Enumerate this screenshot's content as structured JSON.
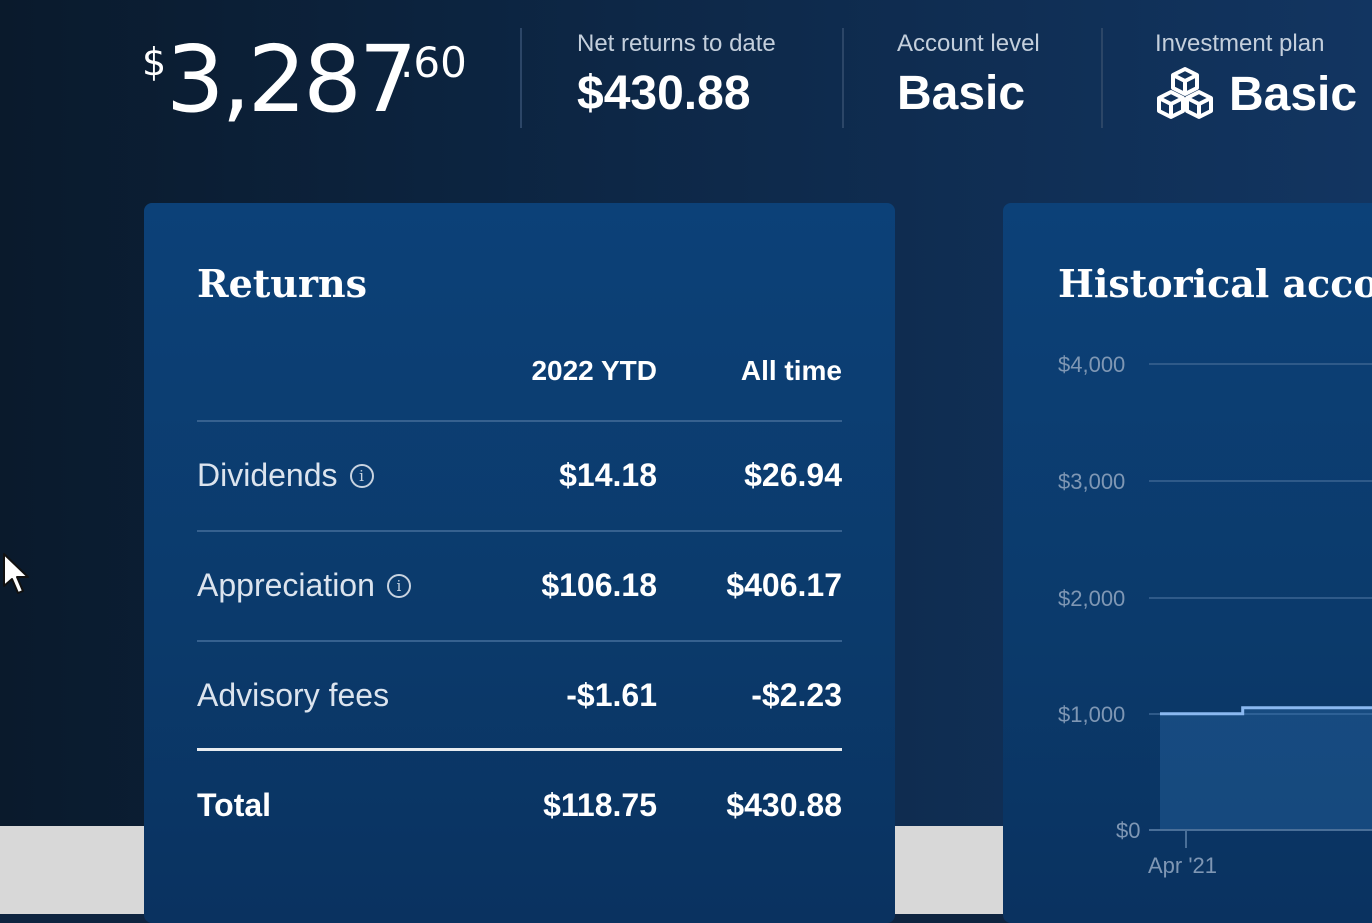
{
  "summary": {
    "balance": {
      "currency": "$",
      "whole": "3,287",
      "cents": ".60"
    },
    "net_returns": {
      "label": "Net returns to date",
      "value": "$430.88"
    },
    "account_level": {
      "label": "Account level",
      "value": "Basic"
    },
    "investment_plan": {
      "label": "Investment plan",
      "value": "Basic F",
      "icon": "cubes-icon"
    }
  },
  "returns": {
    "title": "Returns",
    "columns": [
      "2022 YTD",
      "All time"
    ],
    "rows": [
      {
        "label": "Dividends",
        "info": true,
        "ytd": "$14.18",
        "all": "$26.94"
      },
      {
        "label": "Appreciation",
        "info": true,
        "ytd": "$106.18",
        "all": "$406.17"
      },
      {
        "label": "Advisory fees",
        "info": false,
        "ytd": "-$1.61",
        "all": "-$2.23"
      }
    ],
    "total": {
      "label": "Total",
      "ytd": "$118.75",
      "all": "$430.88"
    }
  },
  "historical": {
    "title": "Historical accoun",
    "y_ticks": [
      "$4,000",
      "$3,000",
      "$2,000",
      "$1,000",
      "$0"
    ],
    "x_ticks": [
      "Apr '21"
    ]
  },
  "chart_data": {
    "type": "area",
    "title": "Historical accoun",
    "xlabel": "",
    "ylabel": "",
    "ylim": [
      0,
      4000
    ],
    "y_ticks": [
      4000,
      3000,
      2000,
      1000,
      0
    ],
    "x_ticks": [
      "Apr '21"
    ],
    "series": [
      {
        "x": [
          0,
          0.39,
          0.39,
          1.0
        ],
        "values": [
          990,
          990,
          1040,
          1040
        ]
      }
    ],
    "grid": true
  },
  "colors": {
    "accent": "#0c4178",
    "line": "#8ab8f0"
  }
}
